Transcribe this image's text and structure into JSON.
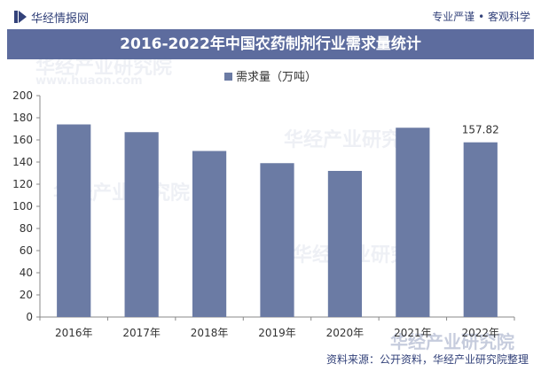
{
  "header": {
    "brand": "华经情报网",
    "tagline": "专业严谨 • 客观科学"
  },
  "title_band": "2016-2022年中国农药制剂行业需求量统计",
  "footer": {
    "watermark_brand": "华经产业研究院",
    "watermark_url": "www.huaon.com",
    "source": "资料来源：公开资料，华经产业研究院整理"
  },
  "colors": {
    "bar": "#6b7ba4",
    "title_band": "#5d6c9e",
    "brand_text": "#33427a"
  },
  "chart_data": {
    "type": "bar",
    "title": "2016-2022年中国农药制剂行业需求量统计",
    "categories": [
      "2016年",
      "2017年",
      "2018年",
      "2019年",
      "2020年",
      "2021年",
      "2022年"
    ],
    "series": [
      {
        "name": "需求量（万吨）",
        "values": [
          174,
          167,
          150,
          139,
          132,
          171,
          157.82
        ]
      }
    ],
    "data_labels": [
      {
        "category": "2022年",
        "text": "157.82"
      }
    ],
    "ylim": [
      0,
      200
    ],
    "yticks": [
      0,
      20,
      40,
      60,
      80,
      100,
      120,
      140,
      160,
      180,
      200
    ],
    "grid": false,
    "legend": "top-center"
  }
}
